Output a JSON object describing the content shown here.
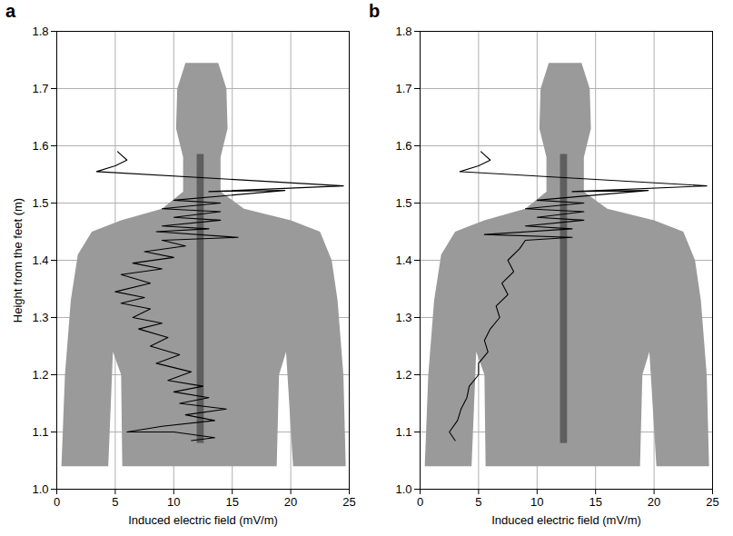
{
  "chart_data": [
    {
      "type": "line",
      "panel": "a",
      "x_label": "Induced electric field (mV/m)",
      "y_label": "Height from the feet (m)",
      "xlim": [
        0,
        25
      ],
      "xticks": [
        0,
        5,
        10,
        15,
        20,
        25
      ],
      "ylim": [
        1,
        1.8
      ],
      "yticks": [
        {
          "value": 1,
          "label": "1.0"
        },
        1.1,
        1.2,
        1.3,
        1.4,
        1.5,
        1.6,
        1.7,
        1.8
      ],
      "grid": true,
      "color": "#000000",
      "x": [
        5.2,
        6.0,
        5.0,
        3.4,
        24.5,
        13.0,
        19.5,
        10.0,
        14.0,
        9.0,
        14.0,
        10.0,
        14.0,
        9.0,
        13.0,
        8.5,
        15.5,
        9.0,
        11.0,
        7.5,
        10.0,
        6.5,
        9.0,
        5.5,
        8.0,
        5.0,
        7.5,
        5.5,
        8.0,
        6.5,
        9.0,
        7.0,
        9.5,
        8.0,
        10.5,
        8.5,
        11.5,
        9.5,
        12.5,
        10.0,
        13.0,
        10.5,
        14.5,
        11.0,
        13.5,
        9.0,
        6.0,
        10.0,
        13.5,
        11.5
      ],
      "y": [
        1.59,
        1.575,
        1.565,
        1.555,
        1.53,
        1.52,
        1.522,
        1.505,
        1.5,
        1.49,
        1.485,
        1.475,
        1.47,
        1.46,
        1.455,
        1.45,
        1.44,
        1.435,
        1.425,
        1.415,
        1.405,
        1.395,
        1.385,
        1.375,
        1.36,
        1.345,
        1.335,
        1.325,
        1.315,
        1.3,
        1.29,
        1.28,
        1.265,
        1.25,
        1.235,
        1.22,
        1.205,
        1.19,
        1.18,
        1.17,
        1.16,
        1.15,
        1.14,
        1.13,
        1.12,
        1.11,
        1.1,
        1.1,
        1.09,
        1.085
      ]
    },
    {
      "type": "line",
      "panel": "b",
      "x_label": "Induced electric field (mV/m)",
      "xlim": [
        0,
        25
      ],
      "xticks": [
        0,
        5,
        10,
        15,
        20,
        25
      ],
      "ylim": [
        1,
        1.8
      ],
      "yticks": [
        {
          "value": 1,
          "label": "1.0"
        },
        1.1,
        1.2,
        1.3,
        1.4,
        1.5,
        1.6,
        1.7,
        1.8
      ],
      "grid": true,
      "color": "#000000",
      "x": [
        5.2,
        6.0,
        5.0,
        3.4,
        24.5,
        13.0,
        19.5,
        10.0,
        14.0,
        9.0,
        14.0,
        10.0,
        14.0,
        9.0,
        13.0,
        5.5,
        13.0,
        9.0,
        8.5,
        7.5,
        8.0,
        7.0,
        7.5,
        6.5,
        6.8,
        6.0,
        5.5,
        5.8,
        5.0,
        5.0,
        4.2,
        4.0,
        3.5,
        3.2,
        2.5,
        3.0
      ],
      "y": [
        1.59,
        1.575,
        1.565,
        1.555,
        1.53,
        1.52,
        1.522,
        1.505,
        1.5,
        1.49,
        1.485,
        1.475,
        1.47,
        1.46,
        1.455,
        1.445,
        1.44,
        1.435,
        1.42,
        1.4,
        1.38,
        1.36,
        1.34,
        1.32,
        1.3,
        1.28,
        1.26,
        1.24,
        1.22,
        1.2,
        1.18,
        1.16,
        1.14,
        1.12,
        1.1,
        1.085
      ]
    }
  ]
}
